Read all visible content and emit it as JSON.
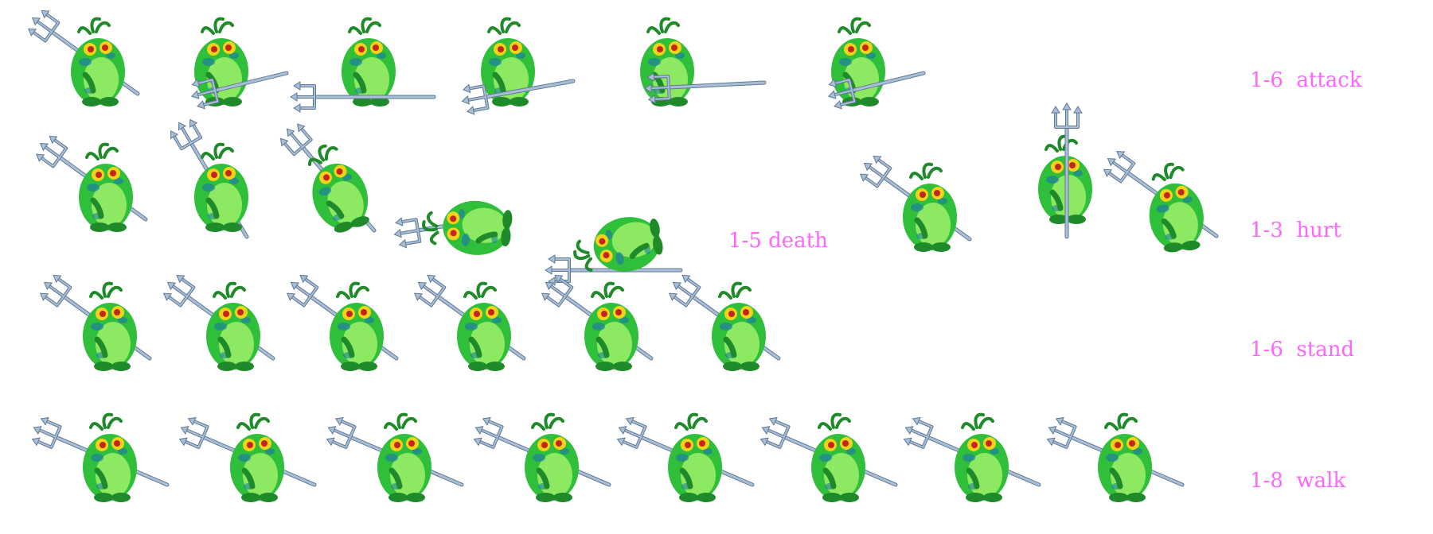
{
  "sheet": {
    "colors": {
      "body": "#2fbf3a",
      "body_dark": "#1f8a2a",
      "belly": "#9ff06a",
      "spots": "#1e7fa0",
      "eye": "#f4d21a",
      "pupil": "#c2271a",
      "trident": "#a9bfd6",
      "trident_dark": "#5f7894",
      "label": "#ff66ff"
    },
    "rows": [
      {
        "id": "attack",
        "label": "1-6  attack",
        "frames": [
          {
            "pose": "carry"
          },
          {
            "pose": "side-poke"
          },
          {
            "pose": "low-poke"
          },
          {
            "pose": "front-poke"
          },
          {
            "pose": "wide-poke"
          },
          {
            "pose": "side-poke"
          }
        ]
      },
      {
        "id": "death",
        "label": "1-5 death",
        "frames": [
          {
            "pose": "carry"
          },
          {
            "pose": "upright"
          },
          {
            "pose": "tilt"
          },
          {
            "pose": "fallen"
          },
          {
            "pose": "flat"
          }
        ]
      },
      {
        "id": "hurt",
        "label": "1-3  hurt",
        "frames": [
          {
            "pose": "carry"
          },
          {
            "pose": "upright-vertical"
          },
          {
            "pose": "carry-flinch"
          }
        ]
      },
      {
        "id": "stand",
        "label": "1-6  stand",
        "frames": [
          {
            "pose": "carry"
          },
          {
            "pose": "carry"
          },
          {
            "pose": "carry"
          },
          {
            "pose": "carry"
          },
          {
            "pose": "carry"
          },
          {
            "pose": "carry"
          }
        ]
      },
      {
        "id": "walk",
        "label": "1-8  walk",
        "frames": [
          {
            "pose": "walk"
          },
          {
            "pose": "walk"
          },
          {
            "pose": "walk"
          },
          {
            "pose": "walk"
          },
          {
            "pose": "walk"
          },
          {
            "pose": "walk"
          },
          {
            "pose": "walk"
          },
          {
            "pose": "walk"
          }
        ]
      }
    ]
  }
}
